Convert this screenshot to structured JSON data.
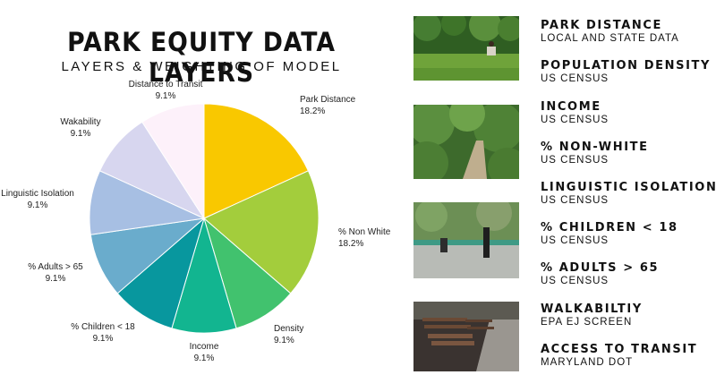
{
  "header": {
    "title": "PARK EQUITY DATA LAYERS",
    "subtitle": "LAYERS & WEIGHTING OF MODEL"
  },
  "chart_data": {
    "type": "pie",
    "title": "PARK EQUITY DATA LAYERS",
    "subtitle": "LAYERS & WEIGHTING OF MODEL",
    "slices": [
      {
        "label": "Park Distance",
        "value": 18.2,
        "value_label": "18.2%",
        "color": "#f9c800"
      },
      {
        "label": "% Non White",
        "value": 18.2,
        "value_label": "18.2%",
        "color": "#a3cd3c"
      },
      {
        "label": "Density",
        "value": 9.1,
        "value_label": "9.1%",
        "color": "#41c26e"
      },
      {
        "label": "Income",
        "value": 9.1,
        "value_label": "9.1%",
        "color": "#12b590"
      },
      {
        "label": "% Children < 18",
        "value": 9.1,
        "value_label": "9.1%",
        "color": "#08979e"
      },
      {
        "label": "% Adults > 65",
        "value": 9.1,
        "value_label": "9.1%",
        "color": "#6aaccc"
      },
      {
        "label": "Linguistic Isolation",
        "value": 9.1,
        "value_label": "9.1%",
        "color": "#a7bfe3"
      },
      {
        "label": "Wakability",
        "value": 9.1,
        "value_label": "9.1%",
        "color": "#d7d6ef"
      },
      {
        "label": "Distance to Transit",
        "value": 9.1,
        "value_label": "9.1%",
        "color": "#fdf1fa"
      }
    ]
  },
  "layers": [
    {
      "name": "PARK DISTANCE",
      "source": "LOCAL AND STATE DATA"
    },
    {
      "name": "POPULATION DENSITY",
      "source": "US CENSUS"
    },
    {
      "name": "INCOME",
      "source": "US CENSUS"
    },
    {
      "name": "% NON-WHITE",
      "source": "US CENSUS"
    },
    {
      "name": "LINGUISTIC ISOLATION",
      "source": "US CENSUS"
    },
    {
      "name": "% CHILDREN < 18",
      "source": "US CENSUS"
    },
    {
      "name": "% ADULTS > 65",
      "source": "US CENSUS"
    },
    {
      "name": "WALKABILTIY",
      "source": "EPA EJ SCREEN"
    },
    {
      "name": "ACCESS TO TRANSIT",
      "source": "MARYLAND DOT"
    }
  ],
  "photos": [
    {
      "icon": "park-lawn-photo"
    },
    {
      "icon": "forest-path-photo"
    },
    {
      "icon": "park-play-photo"
    },
    {
      "icon": "park-bench-photo"
    }
  ]
}
